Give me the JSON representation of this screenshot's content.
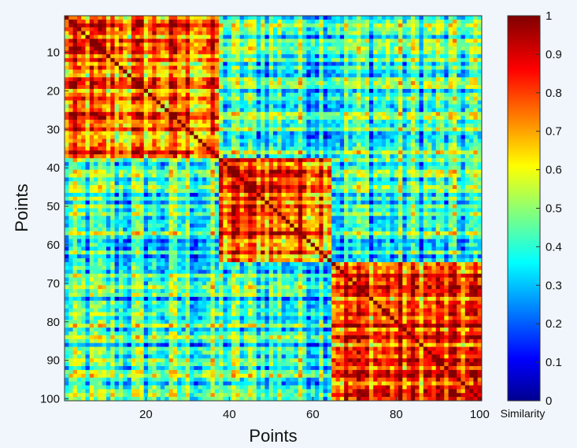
{
  "chart_data": {
    "type": "heatmap",
    "title": "",
    "xlabel": "Points",
    "ylabel": "Points",
    "n": 100,
    "x_range": [
      1,
      100
    ],
    "y_range": [
      1,
      100
    ],
    "x_ticks": [
      20,
      40,
      60,
      80,
      100
    ],
    "y_ticks": [
      10,
      20,
      30,
      40,
      50,
      60,
      70,
      80,
      90,
      100
    ],
    "clusters": [
      {
        "start": 1,
        "end": 37,
        "within_mean": 0.74
      },
      {
        "start": 38,
        "end": 64,
        "within_mean": 0.82
      },
      {
        "start": 65,
        "end": 100,
        "within_mean": 0.8
      }
    ],
    "between_cluster_mean": 0.42,
    "diagonal_value": 1.0,
    "colorbar": {
      "label": "Similarity",
      "range": [
        0,
        1
      ],
      "ticks": [
        "0",
        "0.1",
        "0.2",
        "0.3",
        "0.4",
        "0.5",
        "0.6",
        "0.7",
        "0.8",
        "0.9",
        "1"
      ],
      "colormap": "jet"
    },
    "grid": false
  }
}
